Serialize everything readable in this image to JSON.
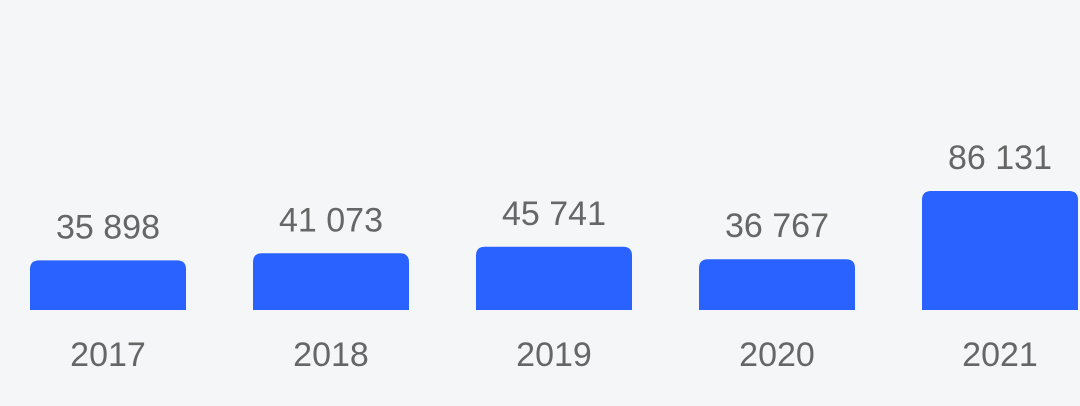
{
  "chart_data": {
    "type": "bar",
    "categories": [
      "2017",
      "2018",
      "2019",
      "2020",
      "2021"
    ],
    "values": [
      35898,
      41073,
      45741,
      36767,
      86131
    ],
    "value_labels": [
      "35 898",
      "41 073",
      "45 741",
      "36 767",
      "86 131"
    ],
    "color": "#2962ff"
  }
}
